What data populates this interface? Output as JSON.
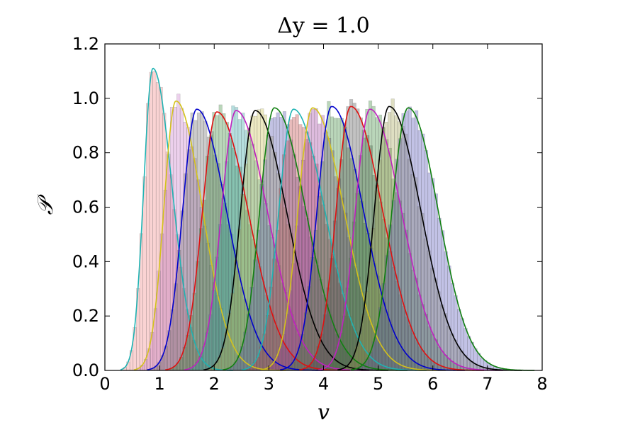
{
  "chart_data": {
    "type": "bar",
    "title": "Δy = 1.0",
    "xlabel": "v",
    "ylabel": "𝒫",
    "xlim": [
      0,
      8
    ],
    "ylim": [
      0,
      1.2
    ],
    "xticks": [
      "0",
      "1",
      "2",
      "3",
      "4",
      "5",
      "6",
      "7",
      "8"
    ],
    "yticks": [
      "0.0",
      "0.2",
      "0.4",
      "0.6",
      "0.8",
      "1.0",
      "1.2"
    ],
    "grid": false,
    "legend": "none",
    "description_of_series": "Overlapping normalized histograms (bar) with fitted density curves (line); each series given by peak location, peak height and distribution widths.",
    "series": [
      {
        "peak_v": 0.88,
        "peak_p": 1.11,
        "sigma_left": 0.17,
        "sigma_right": 0.35,
        "line_color": "#1fb3b3",
        "fill_color": "#f08080"
      },
      {
        "peak_v": 1.3,
        "peak_p": 0.99,
        "sigma_left": 0.22,
        "sigma_right": 0.48,
        "line_color": "#d4c21a",
        "fill_color": "#c878c8"
      },
      {
        "peak_v": 1.68,
        "peak_p": 0.96,
        "sigma_left": 0.26,
        "sigma_right": 0.55,
        "line_color": "#0000cc",
        "fill_color": "#6a6a6a"
      },
      {
        "peak_v": 2.05,
        "peak_p": 0.95,
        "sigma_left": 0.27,
        "sigma_right": 0.58,
        "line_color": "#e01010",
        "fill_color": "#3a8a3a"
      },
      {
        "peak_v": 2.4,
        "peak_p": 0.955,
        "sigma_left": 0.27,
        "sigma_right": 0.58,
        "line_color": "#c020c0",
        "fill_color": "#2aa0a0"
      },
      {
        "peak_v": 2.75,
        "peak_p": 0.955,
        "sigma_left": 0.27,
        "sigma_right": 0.58,
        "line_color": "#000000",
        "fill_color": "#c8c050"
      },
      {
        "peak_v": 3.1,
        "peak_p": 0.965,
        "sigma_left": 0.27,
        "sigma_right": 0.58,
        "line_color": "#108010",
        "fill_color": "#5050b0"
      },
      {
        "peak_v": 3.45,
        "peak_p": 0.96,
        "sigma_left": 0.27,
        "sigma_right": 0.58,
        "line_color": "#1fb3b3",
        "fill_color": "#c04040"
      },
      {
        "peak_v": 3.8,
        "peak_p": 0.965,
        "sigma_left": 0.27,
        "sigma_right": 0.58,
        "line_color": "#d4c21a",
        "fill_color": "#a040a0"
      },
      {
        "peak_v": 4.15,
        "peak_p": 0.97,
        "sigma_left": 0.27,
        "sigma_right": 0.58,
        "line_color": "#0000cc",
        "fill_color": "#3a8a3a"
      },
      {
        "peak_v": 4.5,
        "peak_p": 0.97,
        "sigma_left": 0.27,
        "sigma_right": 0.58,
        "line_color": "#e01010",
        "fill_color": "#505050"
      },
      {
        "peak_v": 4.85,
        "peak_p": 0.96,
        "sigma_left": 0.27,
        "sigma_right": 0.58,
        "line_color": "#c020c0",
        "fill_color": "#3a8a3a"
      },
      {
        "peak_v": 5.2,
        "peak_p": 0.97,
        "sigma_left": 0.27,
        "sigma_right": 0.58,
        "line_color": "#000000",
        "fill_color": "#a0a050"
      },
      {
        "peak_v": 5.55,
        "peak_p": 0.965,
        "sigma_left": 0.3,
        "sigma_right": 0.55,
        "line_color": "#108010",
        "fill_color": "#5050b8"
      }
    ]
  }
}
